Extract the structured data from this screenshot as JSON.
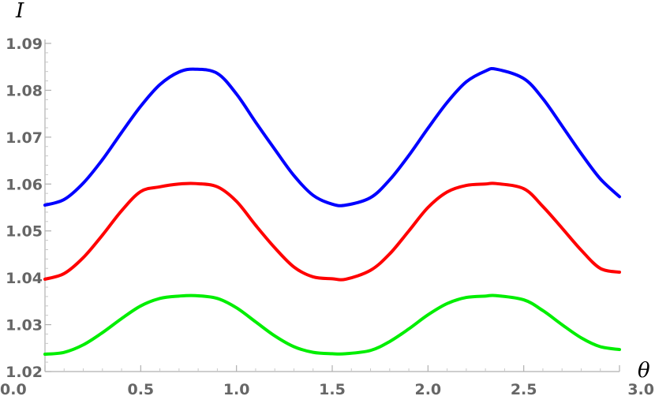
{
  "chart_data": {
    "type": "line",
    "title": "",
    "xlabel": "θ",
    "ylabel": "I",
    "xlim": [
      0.0,
      3.0
    ],
    "ylim": [
      1.02,
      1.09
    ],
    "x_ticks": [
      "0.0",
      "0.5",
      "1.0",
      "1.5",
      "2.0",
      "2.5",
      "3.0"
    ],
    "y_ticks": [
      "1.02",
      "1.03",
      "1.04",
      "1.05",
      "1.06",
      "1.07",
      "1.08",
      "1.09"
    ],
    "grid": false,
    "legend": "none",
    "series": [
      {
        "color": "#0000ff",
        "x": [
          0.0,
          0.1,
          0.2,
          0.3,
          0.4,
          0.5,
          0.6,
          0.7,
          0.785,
          0.9,
          1.0,
          1.1,
          1.2,
          1.3,
          1.4,
          1.5,
          1.571,
          1.7,
          1.8,
          1.9,
          2.0,
          2.1,
          2.2,
          2.3,
          2.356,
          2.5,
          2.6,
          2.7,
          2.8,
          2.9,
          3.0
        ],
        "y": [
          1.0555,
          1.0567,
          1.0602,
          1.0652,
          1.071,
          1.0766,
          1.0812,
          1.0839,
          1.0845,
          1.0836,
          1.0792,
          1.0732,
          1.0674,
          1.0618,
          1.0576,
          1.0557,
          1.0555,
          1.0571,
          1.0609,
          1.0661,
          1.0719,
          1.0774,
          1.0818,
          1.0841,
          1.0845,
          1.0825,
          1.0782,
          1.0724,
          1.0665,
          1.0611,
          1.0573
        ]
      },
      {
        "color": "#ff0000",
        "x": [
          0.0,
          0.1,
          0.2,
          0.3,
          0.4,
          0.5,
          0.6,
          0.7,
          0.785,
          0.9,
          1.0,
          1.1,
          1.2,
          1.3,
          1.4,
          1.5,
          1.571,
          1.7,
          1.8,
          1.9,
          2.0,
          2.1,
          2.2,
          2.3,
          2.356,
          2.5,
          2.6,
          2.7,
          2.8,
          2.9,
          3.0
        ],
        "y": [
          1.0397,
          1.0409,
          1.0443,
          1.0491,
          1.0543,
          1.0584,
          1.0594,
          1.06,
          1.0601,
          1.0594,
          1.0563,
          1.0512,
          1.0464,
          1.0423,
          1.0402,
          1.0398,
          1.0397,
          1.0416,
          1.0451,
          1.05,
          1.055,
          1.0583,
          1.0597,
          1.06,
          1.0601,
          1.059,
          1.0552,
          1.0506,
          1.0459,
          1.042,
          1.0412
        ]
      },
      {
        "color": "#00ee00",
        "x": [
          0.0,
          0.1,
          0.2,
          0.3,
          0.4,
          0.5,
          0.6,
          0.7,
          0.785,
          0.9,
          1.0,
          1.1,
          1.2,
          1.3,
          1.4,
          1.5,
          1.571,
          1.7,
          1.8,
          1.9,
          2.0,
          2.1,
          2.2,
          2.3,
          2.356,
          2.5,
          2.6,
          2.7,
          2.8,
          2.9,
          3.0
        ],
        "y": [
          1.0237,
          1.0241,
          1.0257,
          1.0283,
          1.0313,
          1.034,
          1.0356,
          1.0361,
          1.0362,
          1.0356,
          1.0336,
          1.0306,
          1.0276,
          1.0253,
          1.0241,
          1.0238,
          1.0238,
          1.0245,
          1.0264,
          1.0291,
          1.0321,
          1.0345,
          1.0358,
          1.0361,
          1.0362,
          1.0353,
          1.033,
          1.03,
          1.0272,
          1.0253,
          1.0247
        ]
      }
    ]
  }
}
